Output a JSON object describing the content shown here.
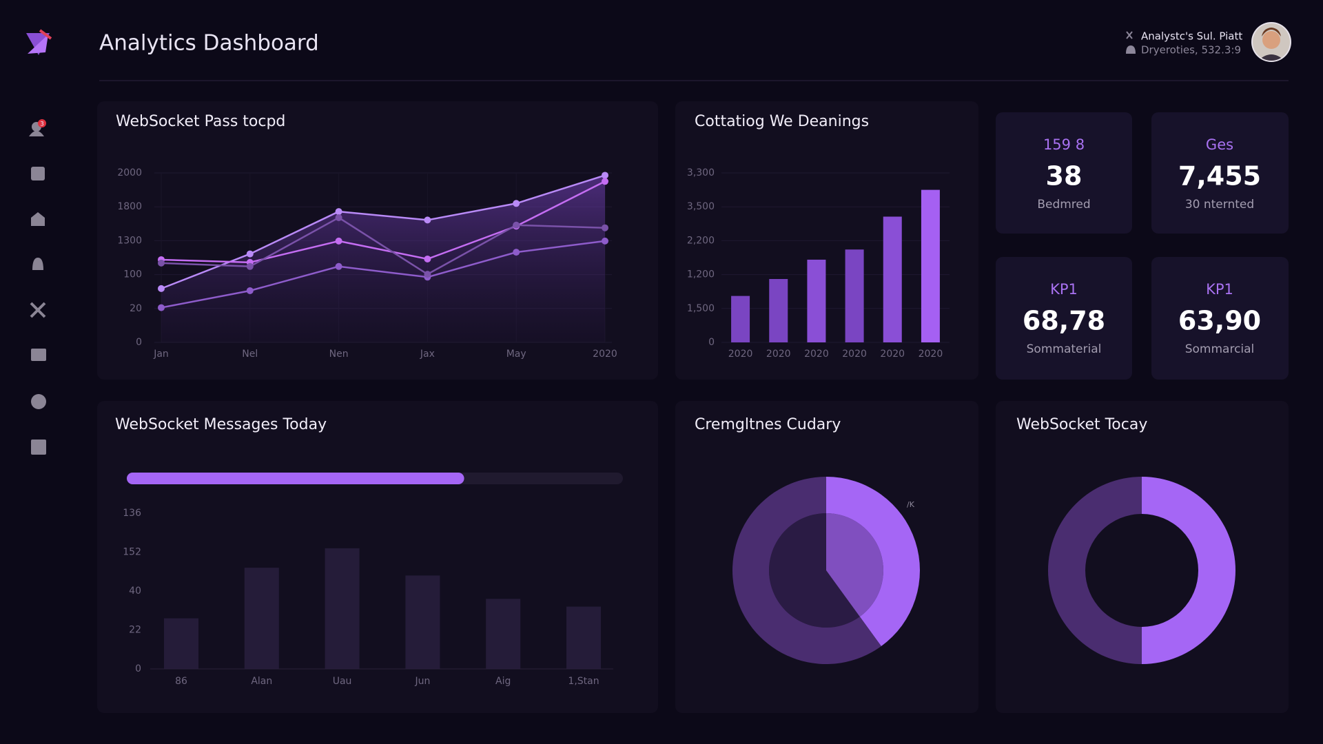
{
  "header": {
    "title": "Analytics Dashboard",
    "user_name": "Analystc's Sul. Piatt",
    "user_detail": "Dryeroties, 532.3:9"
  },
  "sidebar": {
    "badge": "3"
  },
  "line_chart": {
    "type": "line",
    "title": "WebSocket Pass tocpd",
    "categories": [
      "Jan",
      "Nel",
      "Nen",
      "Jax",
      "May",
      "2020"
    ],
    "yticks": [
      0,
      20,
      100,
      1300,
      1800,
      2000
    ],
    "grid": true,
    "series": [
      {
        "color": "#b98af7",
        "values": [
          67,
          832,
          1730,
          1605,
          1820,
          1986
        ]
      },
      {
        "color": "#c46df2",
        "values": [
          628,
          532,
          1288,
          652,
          1515,
          1950
        ]
      },
      {
        "color": "#8e5ccb",
        "values": [
          22,
          62,
          388,
          94,
          892,
          1288
        ]
      },
      {
        "color": "#7a52a9",
        "values": [
          508,
          388,
          1640,
          112,
          1530,
          1490
        ]
      }
    ]
  },
  "bar_chart": {
    "type": "bar",
    "title": "Cottatiog We Deanings",
    "categories": [
      "2020",
      "2020",
      "2020",
      "2020",
      "2020",
      "2020"
    ],
    "y_labels": [
      "0",
      "1,500",
      "1,200",
      "2,200",
      "3,500",
      "3,300"
    ],
    "ylim": [
      0,
      5
    ],
    "values": [
      1.37,
      1.87,
      2.44,
      2.74,
      3.71,
      4.5
    ],
    "colors": [
      "#7a45c2",
      "#7a45c2",
      "#8a4fd6",
      "#7a45c2",
      "#8a4fd6",
      "#a560f2"
    ]
  },
  "kpis": [
    {
      "label": "159 8",
      "value": "38",
      "caption": "Bedmred"
    },
    {
      "label": "Ges",
      "value": "7,455",
      "caption": "30 nternted"
    },
    {
      "label": "KP1",
      "value": "68,78",
      "caption": "Sommaterial"
    },
    {
      "label": "KP1",
      "value": "63,90",
      "caption": "Sommarcial"
    }
  ],
  "messages_chart": {
    "type": "bar",
    "title": "WebSocket Messages Today",
    "progress": 0.68,
    "progress_color": "#a566f5",
    "y_labels": [
      "0",
      "22",
      "40",
      "152",
      "136"
    ],
    "ylim": [
      0,
      4
    ],
    "categories": [
      "86",
      "Alan",
      "Uau",
      "Jun",
      "Aig",
      "1,Stan"
    ],
    "values": [
      1.3,
      2.6,
      3.1,
      2.4,
      1.8,
      1.6
    ],
    "color": "#2b2140"
  },
  "donuts": [
    {
      "type": "pie",
      "title": "Cremgltnes Cudary",
      "annotation": "/K",
      "values": [
        40,
        60
      ],
      "colors": [
        "#a566f5",
        "#4a2d70"
      ]
    },
    {
      "type": "pie",
      "title": "WebSocket Tocay",
      "values": [
        50,
        50
      ],
      "colors": [
        "#a566f5",
        "#4a2d70"
      ]
    }
  ]
}
